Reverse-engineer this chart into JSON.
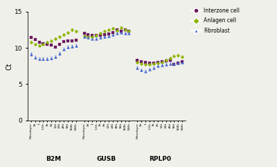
{
  "ylabel": "Ct",
  "ylim": [
    0,
    15
  ],
  "yticks": [
    0,
    5,
    10,
    15
  ],
  "x_labels": [
    "Monolayer",
    "0h",
    "1",
    "1.5h",
    "3h",
    "6h",
    "12h",
    "24h",
    "46h",
    "96h",
    "168h",
    "336h"
  ],
  "gene_labels": [
    "B2M",
    "GUSB",
    "RPLP0"
  ],
  "interzone_color": "#6b1a5e",
  "anlagen_color": "#8db500",
  "fibroblast_color": "#4466cc",
  "background_color": "#f0f0eb",
  "B2M": {
    "interzone": [
      11.4,
      11.2,
      10.8,
      10.6,
      10.5,
      10.4,
      10.1,
      10.5,
      10.9,
      11.0,
      11.0,
      11.1
    ],
    "interzone_err": [
      0.08,
      0.08,
      0.08,
      0.08,
      0.08,
      0.08,
      0.12,
      0.12,
      0.08,
      0.08,
      0.08,
      0.08
    ],
    "anlagen": [
      10.8,
      10.5,
      10.3,
      10.5,
      10.8,
      11.0,
      11.3,
      11.5,
      11.8,
      12.1,
      12.5,
      12.3
    ],
    "anlagen_err": [
      0.12,
      0.08,
      0.08,
      0.08,
      0.08,
      0.12,
      0.12,
      0.15,
      0.15,
      0.15,
      0.15,
      0.15
    ],
    "fibroblast": [
      9.1,
      8.7,
      8.5,
      8.5,
      8.5,
      8.6,
      8.8,
      9.2,
      9.8,
      10.1,
      10.2,
      10.3
    ],
    "fibroblast_err": [
      0.2,
      0.18,
      0.18,
      0.18,
      0.18,
      0.18,
      0.2,
      0.2,
      0.18,
      0.18,
      0.18,
      0.18
    ]
  },
  "GUSB": {
    "interzone": [
      12.0,
      11.8,
      11.7,
      11.7,
      11.7,
      11.8,
      11.9,
      12.1,
      12.5,
      12.3,
      12.5,
      12.3
    ],
    "interzone_err": [
      0.08,
      0.08,
      0.08,
      0.08,
      0.08,
      0.08,
      0.08,
      0.08,
      0.12,
      0.12,
      0.08,
      0.08
    ],
    "anlagen": [
      11.6,
      11.5,
      11.5,
      11.7,
      12.0,
      12.3,
      12.5,
      12.7,
      12.4,
      12.8,
      12.5,
      12.3
    ],
    "anlagen_err": [
      0.12,
      0.08,
      0.08,
      0.08,
      0.12,
      0.12,
      0.12,
      0.15,
      0.15,
      0.15,
      0.12,
      0.12
    ],
    "fibroblast": [
      11.5,
      11.4,
      11.3,
      11.3,
      11.4,
      11.5,
      11.6,
      11.8,
      12.0,
      12.1,
      12.0,
      12.0
    ],
    "fibroblast_err": [
      0.15,
      0.12,
      0.12,
      0.12,
      0.12,
      0.12,
      0.12,
      0.12,
      0.12,
      0.12,
      0.12,
      0.12
    ]
  },
  "RPLP0": {
    "interzone": [
      8.3,
      8.1,
      8.0,
      7.9,
      7.9,
      8.0,
      8.1,
      8.2,
      8.3,
      7.7,
      7.9,
      8.1
    ],
    "interzone_err": [
      0.08,
      0.08,
      0.08,
      0.08,
      0.08,
      0.08,
      0.08,
      0.08,
      0.08,
      0.08,
      0.08,
      0.08
    ],
    "anlagen": [
      8.0,
      7.8,
      7.7,
      7.7,
      7.8,
      7.9,
      8.0,
      8.3,
      8.6,
      8.9,
      9.0,
      8.8
    ],
    "anlagen_err": [
      0.12,
      0.08,
      0.08,
      0.08,
      0.08,
      0.12,
      0.12,
      0.15,
      0.15,
      0.15,
      0.15,
      0.15
    ],
    "fibroblast": [
      7.2,
      6.9,
      6.8,
      7.0,
      7.2,
      7.5,
      7.6,
      7.7,
      7.8,
      7.8,
      7.9,
      8.0
    ],
    "fibroblast_err": [
      0.18,
      0.18,
      0.18,
      0.18,
      0.18,
      0.18,
      0.18,
      0.18,
      0.18,
      0.18,
      0.18,
      0.18
    ]
  }
}
